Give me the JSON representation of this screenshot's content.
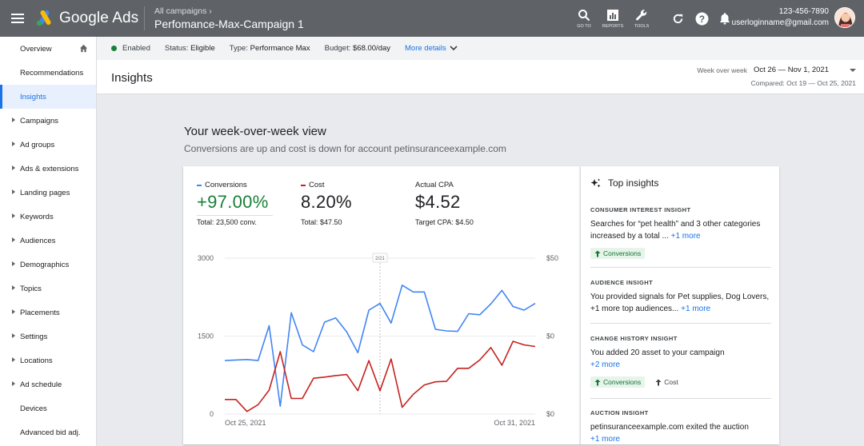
{
  "topbar": {
    "app_name": "Google Ads",
    "breadcrumb_parent": "All campaigns",
    "campaign_name": "Perfomance-Max-Campaign 1",
    "tools": [
      {
        "icon": "search-icon",
        "label": "GO TO"
      },
      {
        "icon": "reports-icon",
        "label": "REPORTS"
      },
      {
        "icon": "wrench-icon",
        "label": "TOOLS"
      }
    ],
    "phone": "123-456-7890",
    "email": "userloginname@gmail.com"
  },
  "sidebar": {
    "items": [
      {
        "label": "Overview",
        "caret": false,
        "home": true
      },
      {
        "label": "Recommendations",
        "caret": false
      },
      {
        "label": "Insights",
        "caret": false,
        "active": true
      },
      {
        "label": "Campaigns",
        "caret": true
      },
      {
        "label": "Ad groups",
        "caret": true
      },
      {
        "label": "Ads & extensions",
        "caret": true
      },
      {
        "label": "Landing pages",
        "caret": true
      },
      {
        "label": "Keywords",
        "caret": true
      },
      {
        "label": "Audiences",
        "caret": true
      },
      {
        "label": "Demographics",
        "caret": true
      },
      {
        "label": "Topics",
        "caret": true
      },
      {
        "label": "Placements",
        "caret": true
      },
      {
        "label": "Settings",
        "caret": true
      },
      {
        "label": "Locations",
        "caret": true
      },
      {
        "label": "Ad schedule",
        "caret": true
      },
      {
        "label": "Devices",
        "caret": false
      },
      {
        "label": "Advanced bid adj.",
        "caret": false
      }
    ]
  },
  "status": {
    "enabled": "Enabled",
    "status_label": "Status:",
    "status_value": "Eligible",
    "type_label": "Type:",
    "type_value": "Performance Max",
    "budget_label": "Budget:",
    "budget_value": "$68.00/day",
    "more": "More details"
  },
  "header": {
    "title": "Insights",
    "period_label": "Week over week",
    "date_range": "Oct 26 — Nov 1, 2021",
    "compared": "Compared: Oct 19 — Oct 25, 2021"
  },
  "main": {
    "title": "Your week-over-week view",
    "subtitle": "Conversions are up and cost is down for account petinsuranceexample.com"
  },
  "metrics": [
    {
      "label": "Conversions",
      "value": "+97.00%",
      "total": "Total: 23,500 conv.",
      "color": "#4285f4",
      "value_color": "#188038"
    },
    {
      "label": "Cost",
      "value": "8.20%",
      "total": "Total: $47.50",
      "color": "#c5221f",
      "value_color": "#202124"
    },
    {
      "label": "Actual CPA",
      "value": "$4.52",
      "total": "Target CPA: $4.50",
      "color": "",
      "value_color": "#202124"
    }
  ],
  "chart_data": {
    "type": "line",
    "marker_label": "2/21",
    "x_start_label": "Oct 25, 2021",
    "x_end_label": "Oct 31, 2021",
    "y_left_ticks": [
      "3000",
      "1500",
      "0"
    ],
    "y_right_ticks": [
      "$50",
      "$0",
      "$0"
    ],
    "ylim": [
      0,
      3000
    ],
    "series": [
      {
        "name": "Conversions",
        "color": "#4285f4",
        "values": [
          1030,
          1040,
          1050,
          1030,
          1700,
          150,
          1950,
          1330,
          1200,
          1770,
          1850,
          1580,
          1180,
          2000,
          2130,
          1750,
          2480,
          2350,
          2350,
          1630,
          1600,
          1590,
          1930,
          1910,
          2120,
          2380,
          2070,
          2000,
          2130
        ]
      },
      {
        "name": "Cost",
        "color": "#c5221f",
        "values": [
          280,
          280,
          50,
          180,
          460,
          1200,
          300,
          300,
          690,
          710,
          740,
          760,
          450,
          1030,
          450,
          1060,
          130,
          380,
          560,
          620,
          630,
          880,
          880,
          1040,
          1280,
          940,
          1400,
          1330,
          1300
        ]
      }
    ]
  },
  "insights": {
    "title": "Top insights",
    "sections": [
      {
        "category": "CONSUMER INTEREST INSIGHT",
        "text": "Searches for “pet health” and 3 other categories increased by a total ...",
        "link": "+1 more",
        "chips": [
          {
            "label": "Conversions",
            "style": "green"
          }
        ]
      },
      {
        "category": "AUDIENCE INSIGHT",
        "text": "You provided signals for Pet supplies, Dog Lovers, +1 more top audiences...",
        "link": "+1 more",
        "chips": []
      },
      {
        "category": "CHANGE HISTORY INSIGHT",
        "text": "You added 20 asset to your campaign",
        "link": "+2 more",
        "chips": [
          {
            "label": "Conversions",
            "style": "green"
          },
          {
            "label": "Cost",
            "style": "plain"
          }
        ]
      },
      {
        "category": "AUCTION INSIGHT",
        "text": "petinsuranceexample.com exited the auction",
        "link": "+1 more",
        "chips": []
      }
    ]
  }
}
